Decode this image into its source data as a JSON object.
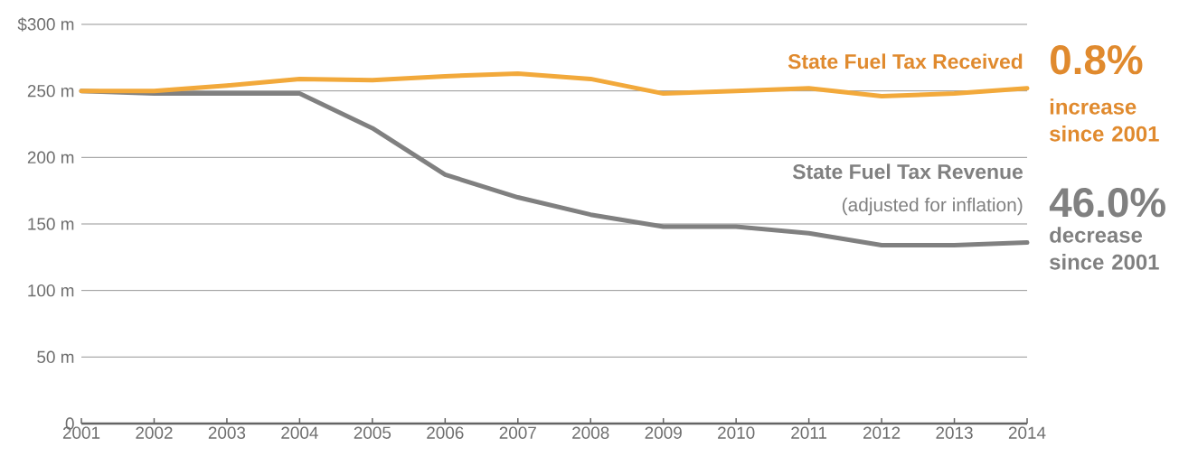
{
  "chart_data": {
    "type": "line",
    "x": [
      2001,
      2002,
      2003,
      2004,
      2005,
      2006,
      2007,
      2008,
      2009,
      2010,
      2011,
      2012,
      2013,
      2014
    ],
    "series": [
      {
        "name": "State Fuel Tax Received",
        "color": "#f2a93b",
        "values": [
          250,
          250,
          254,
          259,
          258,
          261,
          263,
          259,
          248,
          250,
          252,
          246,
          248,
          252
        ]
      },
      {
        "name": "State Fuel Tax Revenue",
        "color": "#808080",
        "values": [
          250,
          248,
          248,
          248,
          222,
          187,
          170,
          157,
          148,
          148,
          143,
          134,
          134,
          136
        ]
      }
    ],
    "xlim": [
      2001,
      2014
    ],
    "xticks": [
      {
        "value": 2001,
        "label": "2001"
      },
      {
        "value": 2002,
        "label": "2002"
      },
      {
        "value": 2003,
        "label": "2003"
      },
      {
        "value": 2004,
        "label": "2004"
      },
      {
        "value": 2005,
        "label": "2005"
      },
      {
        "value": 2006,
        "label": "2006"
      },
      {
        "value": 2007,
        "label": "2007"
      },
      {
        "value": 2008,
        "label": "2008"
      },
      {
        "value": 2009,
        "label": "2009"
      },
      {
        "value": 2010,
        "label": "2010"
      },
      {
        "value": 2011,
        "label": "2011"
      },
      {
        "value": 2012,
        "label": "2012"
      },
      {
        "value": 2013,
        "label": "2013"
      },
      {
        "value": 2014,
        "label": "2014"
      }
    ],
    "ylim": [
      0,
      300
    ],
    "yticks": [
      {
        "value": 0,
        "label": "0"
      },
      {
        "value": 50,
        "label": "50 m"
      },
      {
        "value": 100,
        "label": "100 m"
      },
      {
        "value": 150,
        "label": "150 m"
      },
      {
        "value": 200,
        "label": "200 m"
      },
      {
        "value": 250,
        "label": "250 m"
      },
      {
        "value": 300,
        "label": "$300 m"
      }
    ],
    "grid": "y",
    "legend": false,
    "marker": "none",
    "line_style": "solid",
    "annotations": [
      "(adjusted for inflation)",
      "0.8%",
      "increase since 2001",
      "46.0%",
      "decrease since 2001"
    ]
  }
}
